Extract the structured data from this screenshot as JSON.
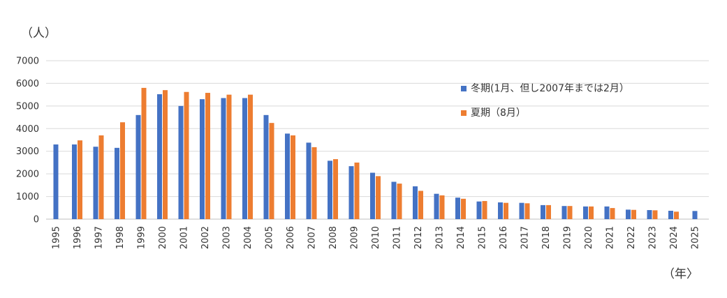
{
  "chart_data": {
    "type": "bar",
    "y_unit_label": "（人）",
    "x_unit_label": "（年〉",
    "ylim": [
      0,
      7000
    ],
    "yticks": [
      0,
      1000,
      2000,
      3000,
      4000,
      5000,
      6000,
      7000
    ],
    "grid": true,
    "legend_position": "right",
    "categories": [
      "1995",
      "1996",
      "1997",
      "1998",
      "1999",
      "2000",
      "2001",
      "2002",
      "2003",
      "2004",
      "2005",
      "2006",
      "2007",
      "2008",
      "2009",
      "2010",
      "2011",
      "2012",
      "2013",
      "2014",
      "2015",
      "2016",
      "2017",
      "2018",
      "2019",
      "2020",
      "2021",
      "2022",
      "2023",
      "2024",
      "2025"
    ],
    "series": [
      {
        "name": "冬期(1月、但し2007年までは2月）",
        "color": "#4472C4",
        "values": [
          3300,
          3300,
          3200,
          3150,
          4600,
          5520,
          5000,
          5300,
          5350,
          5350,
          4600,
          3780,
          3380,
          2580,
          2340,
          2050,
          1650,
          1450,
          1120,
          950,
          780,
          740,
          720,
          620,
          580,
          560,
          560,
          420,
          400,
          370,
          360
        ]
      },
      {
        "name": "夏期（8月）",
        "color": "#ED7D31",
        "values": [
          null,
          3480,
          3700,
          4280,
          5800,
          5700,
          5620,
          5580,
          5500,
          5500,
          4250,
          3700,
          3180,
          2650,
          2500,
          1900,
          1570,
          1250,
          1050,
          900,
          800,
          720,
          700,
          620,
          580,
          560,
          490,
          410,
          390,
          330,
          null
        ]
      }
    ]
  }
}
